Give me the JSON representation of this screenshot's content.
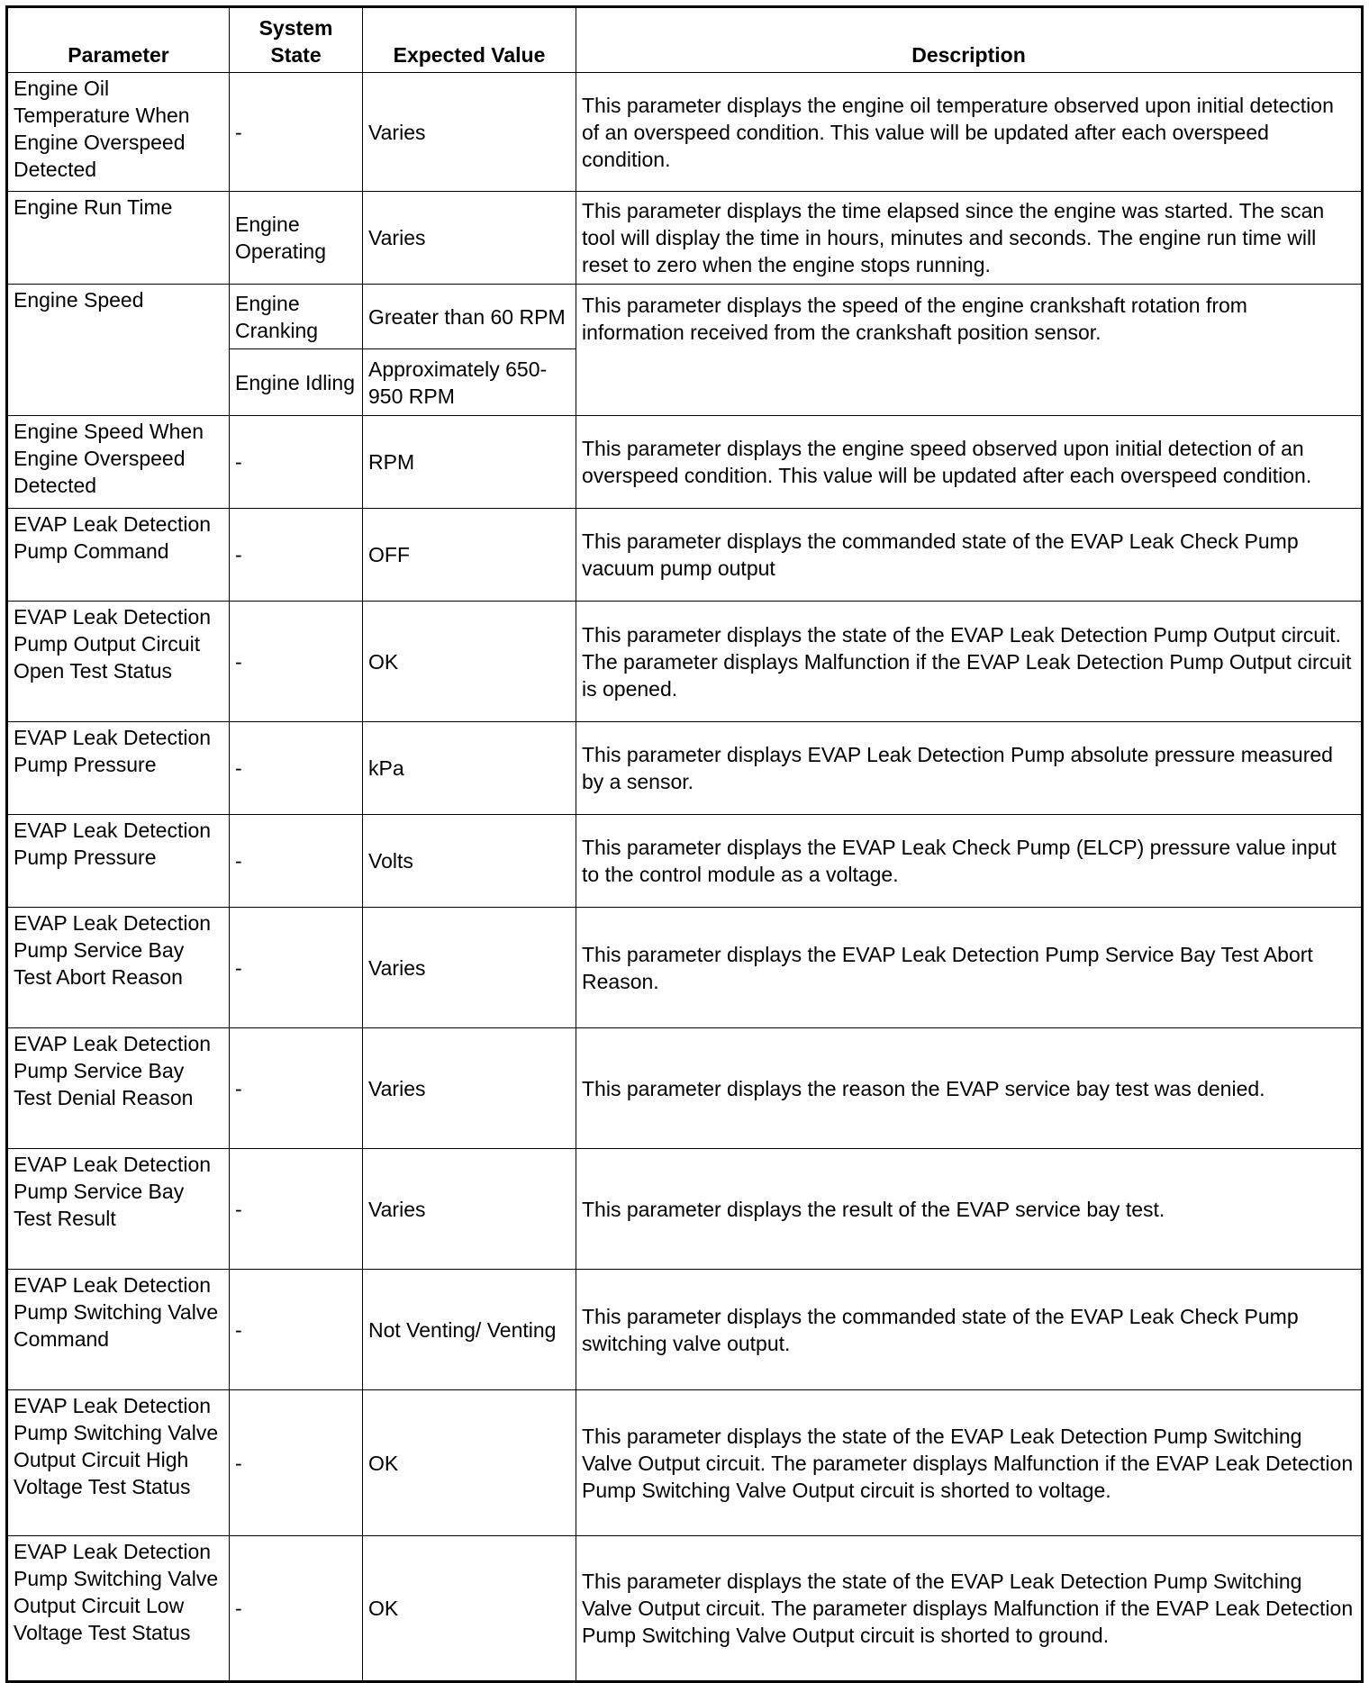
{
  "headers": [
    "Parameter",
    "System State",
    "Expected Value",
    "Description"
  ],
  "rows": [
    {
      "parameter": "Engine Oil Temperature When Engine Overspeed Detected",
      "state": "-",
      "value": "Varies",
      "description": "This parameter displays the engine oil temperature observed upon initial detection of an overspeed condition. This value will be updated after each overspeed condition."
    },
    {
      "parameter": "Engine Run Time",
      "state": "Engine Operating",
      "value": "Varies",
      "description": "This parameter displays the time elapsed since the engine was started. The scan tool will display the time in hours, minutes and seconds. The engine run time will reset to zero when the engine stops running."
    },
    {
      "parameter": "Engine Speed",
      "state": "Engine Cranking",
      "value": "Greater than 60 RPM",
      "description": "This parameter displays the speed of the engine crankshaft rotation from information received from the crankshaft position sensor.",
      "state2": "Engine Idling",
      "value2": "Approximately 650-950 RPM"
    },
    {
      "parameter": "Engine Speed When Engine Overspeed Detected",
      "state": "-",
      "value": "RPM",
      "description": "This parameter displays the engine speed observed upon initial detection of an overspeed condition. This value will be updated after each overspeed condition."
    },
    {
      "parameter": "EVAP Leak Detection Pump Command",
      "state": "-",
      "value": "OFF",
      "description": "This parameter displays the commanded state of the EVAP Leak Check Pump vacuum pump output"
    },
    {
      "parameter": "EVAP Leak Detection Pump Output Circuit Open Test Status",
      "state": "-",
      "value": "OK",
      "description": "This parameter displays the state of the EVAP Leak Detection Pump Output circuit. The parameter displays Malfunction if the EVAP Leak Detection Pump Output circuit is opened."
    },
    {
      "parameter": "EVAP Leak Detection Pump Pressure",
      "state": "-",
      "value": "kPa",
      "description": "This parameter displays EVAP Leak Detection Pump absolute pressure measured by a sensor."
    },
    {
      "parameter": "EVAP Leak Detection Pump Pressure",
      "state": "-",
      "value": "Volts",
      "description": "This parameter displays the EVAP Leak Check Pump (ELCP) pressure value input to the control module as a voltage."
    },
    {
      "parameter": "EVAP Leak Detection Pump Service Bay Test Abort Reason",
      "state": "-",
      "value": "Varies",
      "description": "This parameter displays the EVAP Leak Detection Pump Service Bay Test Abort Reason."
    },
    {
      "parameter": "EVAP Leak Detection Pump Service Bay Test Denial Reason",
      "state": "-",
      "value": "Varies",
      "description": "This parameter displays the reason the EVAP service bay test was denied."
    },
    {
      "parameter": "EVAP Leak Detection Pump Service Bay Test Result",
      "state": "-",
      "value": "Varies",
      "description": "This parameter displays the result of the EVAP service bay test."
    },
    {
      "parameter": "EVAP Leak Detection Pump Switching Valve Command",
      "state": "-",
      "value": "Not Venting/ Venting",
      "description": "This parameter displays the commanded state of the EVAP Leak Check Pump switching valve output."
    },
    {
      "parameter": "EVAP Leak Detection Pump Switching Valve Output Circuit High Voltage Test Status",
      "state": "-",
      "value": "OK",
      "description": "This parameter displays the state of the EVAP Leak Detection Pump Switching Valve Output circuit. The parameter displays Malfunction if the EVAP Leak Detection Pump Switching Valve Output circuit is shorted to voltage."
    },
    {
      "parameter": "EVAP Leak Detection Pump Switching Valve Output Circuit Low Voltage Test Status",
      "state": "-",
      "value": "OK",
      "description": "This parameter displays the state of the EVAP Leak Detection Pump Switching Valve Output circuit. The parameter displays Malfunction if the EVAP Leak Detection Pump Switching Valve Output circuit is shorted to ground."
    }
  ]
}
